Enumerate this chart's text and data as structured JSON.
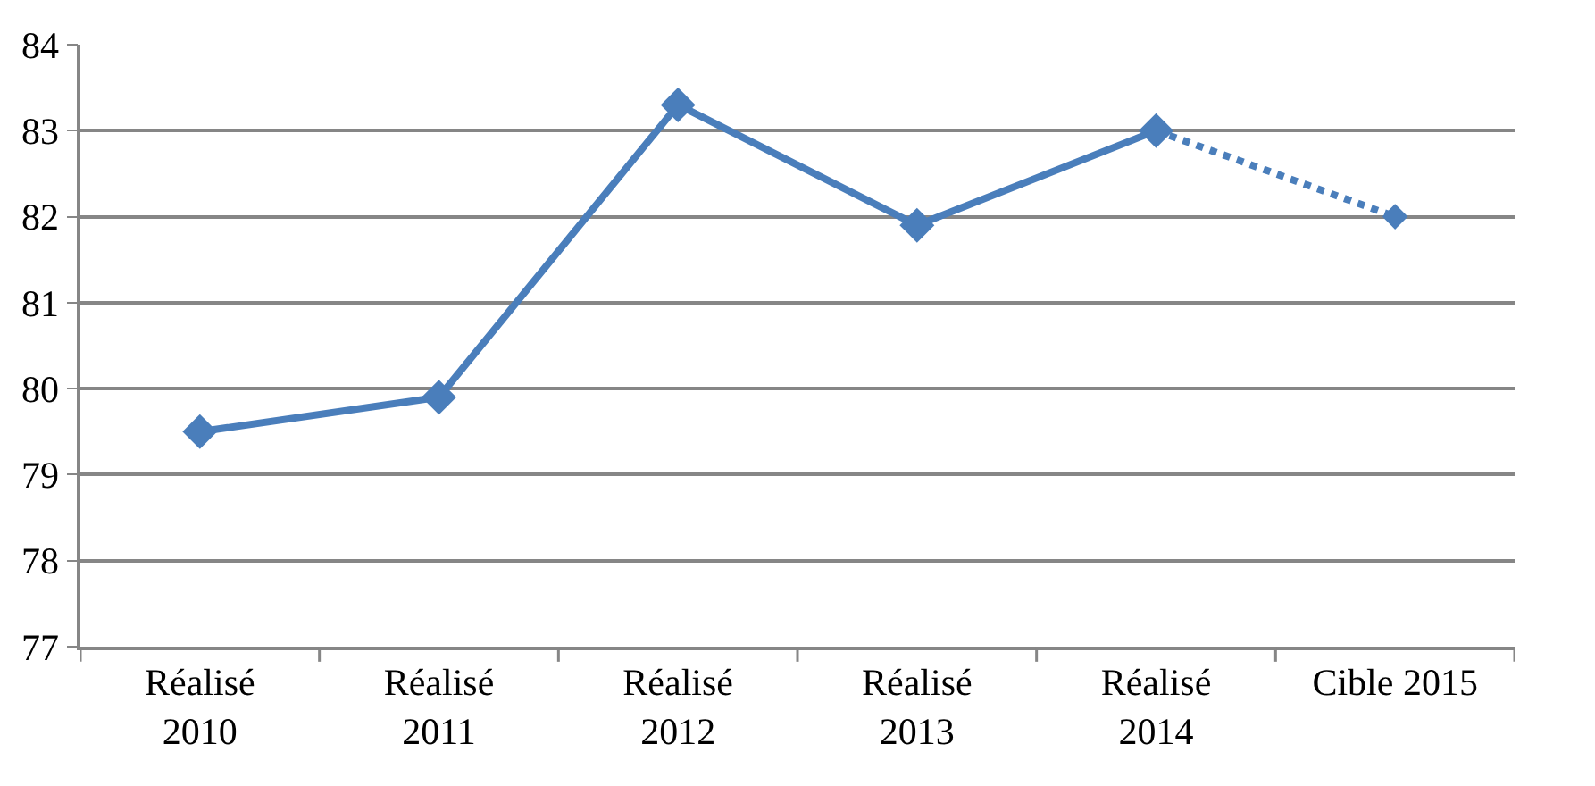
{
  "chart_data": {
    "type": "line",
    "categories": [
      "Réalisé\n2010",
      "Réalisé\n2011",
      "Réalisé\n2012",
      "Réalisé\n2013",
      "Réalisé\n2014",
      "Cible 2015"
    ],
    "series": [
      {
        "color": "#4a7ebb",
        "values": [
          79.5,
          79.9,
          83.3,
          81.9,
          83.0,
          null
        ],
        "line_style": "solid"
      },
      {
        "color": "#4a7ebb",
        "values": [
          null,
          null,
          null,
          null,
          83.0,
          82.0
        ],
        "line_style": "dotted"
      }
    ],
    "ylim": [
      77,
      84
    ],
    "yticks": [
      77,
      78,
      79,
      80,
      81,
      82,
      83,
      84
    ],
    "grid": "y",
    "marker": "diamond"
  }
}
